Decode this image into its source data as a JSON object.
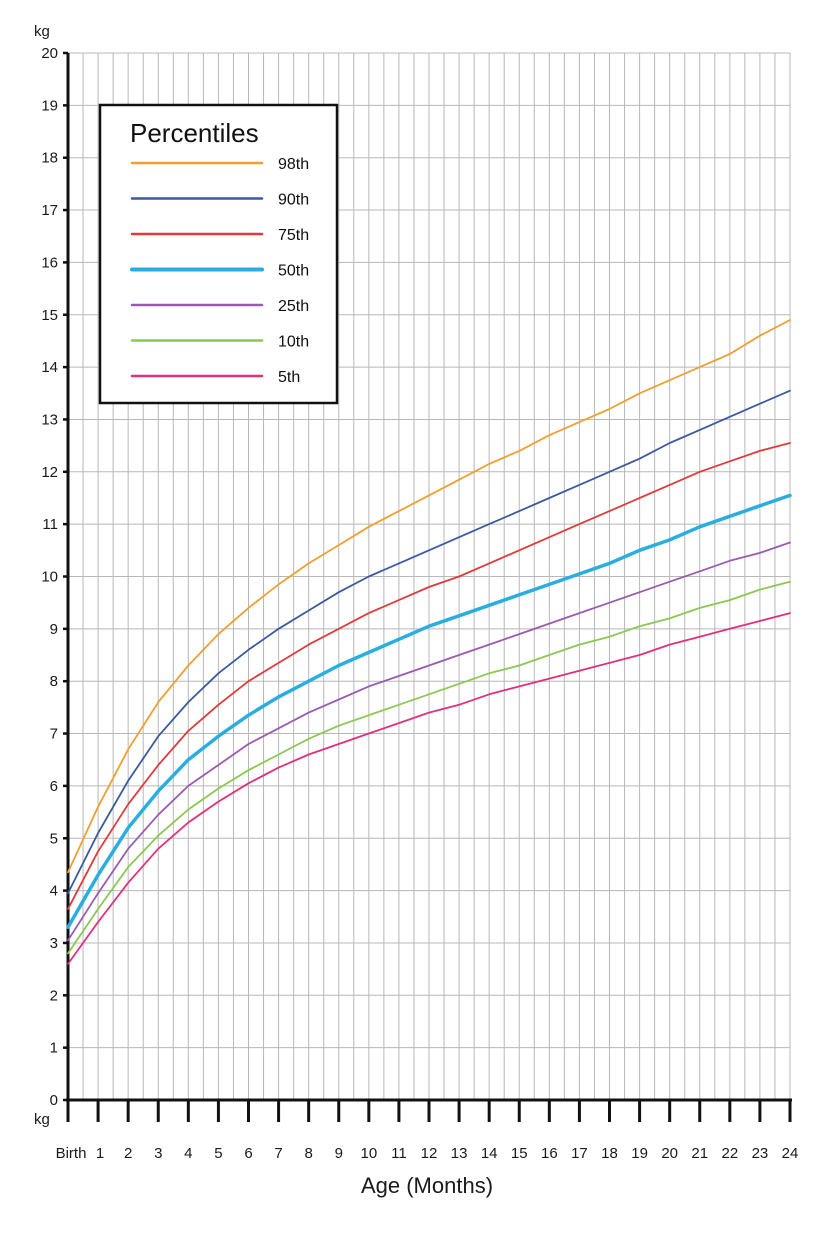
{
  "chart_data": {
    "type": "line",
    "y_unit_top": "kg",
    "y_unit_bottom": "kg",
    "xlabel": "Age (Months)",
    "ylabel": "",
    "xlim": [
      0,
      24
    ],
    "ylim": [
      0,
      20
    ],
    "x_tick_labels": [
      "Birth",
      "1",
      "2",
      "3",
      "4",
      "5",
      "6",
      "7",
      "8",
      "9",
      "10",
      "11",
      "12",
      "13",
      "14",
      "15",
      "16",
      "17",
      "18",
      "19",
      "20",
      "21",
      "22",
      "23",
      "24"
    ],
    "y_tick_labels": [
      "0",
      "1",
      "2",
      "3",
      "4",
      "5",
      "6",
      "7",
      "8",
      "9",
      "10",
      "11",
      "12",
      "13",
      "14",
      "15",
      "16",
      "17",
      "18",
      "19",
      "20"
    ],
    "grid": true,
    "x_grid_step": 0.5,
    "y_grid_step": 1,
    "legend": {
      "title": "Percentiles",
      "position": "top-left"
    },
    "x": [
      0,
      1,
      2,
      3,
      4,
      5,
      6,
      7,
      8,
      9,
      10,
      11,
      12,
      13,
      14,
      15,
      16,
      17,
      18,
      19,
      20,
      21,
      22,
      23,
      24
    ],
    "series": [
      {
        "name": "98th",
        "color": "#f0a030",
        "emphasis": false,
        "values": [
          4.35,
          5.6,
          6.7,
          7.6,
          8.3,
          8.9,
          9.4,
          9.85,
          10.25,
          10.6,
          10.95,
          11.25,
          11.55,
          11.85,
          12.15,
          12.4,
          12.7,
          12.95,
          13.2,
          13.5,
          13.75,
          14.0,
          14.25,
          14.6,
          14.9
        ]
      },
      {
        "name": "90th",
        "color": "#3a5aa0",
        "emphasis": false,
        "values": [
          3.95,
          5.1,
          6.1,
          6.95,
          7.6,
          8.15,
          8.6,
          9.0,
          9.35,
          9.7,
          10.0,
          10.25,
          10.5,
          10.75,
          11.0,
          11.25,
          11.5,
          11.75,
          12.0,
          12.25,
          12.55,
          12.8,
          13.05,
          13.3,
          13.55
        ]
      },
      {
        "name": "75th",
        "color": "#e03a3a",
        "emphasis": false,
        "values": [
          3.65,
          4.75,
          5.65,
          6.4,
          7.05,
          7.55,
          8.0,
          8.35,
          8.7,
          9.0,
          9.3,
          9.55,
          9.8,
          10.0,
          10.25,
          10.5,
          10.75,
          11.0,
          11.25,
          11.5,
          11.75,
          12.0,
          12.2,
          12.4,
          12.55
        ]
      },
      {
        "name": "50th",
        "color": "#2aaee0",
        "emphasis": true,
        "values": [
          3.3,
          4.3,
          5.2,
          5.9,
          6.5,
          6.95,
          7.35,
          7.7,
          8.0,
          8.3,
          8.55,
          8.8,
          9.05,
          9.25,
          9.45,
          9.65,
          9.85,
          10.05,
          10.25,
          10.5,
          10.7,
          10.95,
          11.15,
          11.35,
          11.55
        ]
      },
      {
        "name": "25th",
        "color": "#9a5ab0",
        "emphasis": false,
        "values": [
          3.05,
          3.95,
          4.8,
          5.45,
          6.0,
          6.4,
          6.8,
          7.1,
          7.4,
          7.65,
          7.9,
          8.1,
          8.3,
          8.5,
          8.7,
          8.9,
          9.1,
          9.3,
          9.5,
          9.7,
          9.9,
          10.1,
          10.3,
          10.45,
          10.65
        ]
      },
      {
        "name": "10th",
        "color": "#8cc850",
        "emphasis": false,
        "values": [
          2.8,
          3.65,
          4.45,
          5.05,
          5.55,
          5.95,
          6.3,
          6.6,
          6.9,
          7.15,
          7.35,
          7.55,
          7.75,
          7.95,
          8.15,
          8.3,
          8.5,
          8.7,
          8.85,
          9.05,
          9.2,
          9.4,
          9.55,
          9.75,
          9.9
        ]
      },
      {
        "name": "5th",
        "color": "#e0307a",
        "emphasis": false,
        "values": [
          2.6,
          3.4,
          4.15,
          4.8,
          5.3,
          5.7,
          6.05,
          6.35,
          6.6,
          6.8,
          7.0,
          7.2,
          7.4,
          7.55,
          7.75,
          7.9,
          8.05,
          8.2,
          8.35,
          8.5,
          8.7,
          8.85,
          9.0,
          9.15,
          9.3
        ]
      }
    ]
  }
}
